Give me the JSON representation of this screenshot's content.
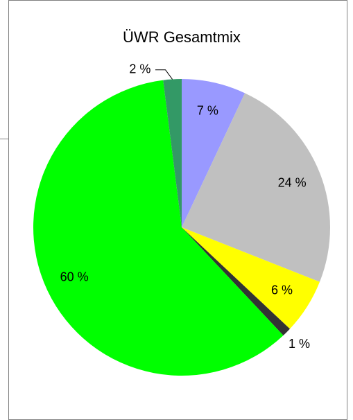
{
  "chart_data": {
    "type": "pie",
    "title": "ÜWR Gesamtmix",
    "values": [
      7,
      24,
      6,
      1,
      60,
      2
    ],
    "value_labels": [
      "7 %",
      "24 %",
      "6 %",
      "1 %",
      "60 %",
      "2 %"
    ],
    "colors": [
      "#9999ff",
      "#c0c0c0",
      "#ffff00",
      "#333333",
      "#00ff00",
      "#339966"
    ]
  }
}
